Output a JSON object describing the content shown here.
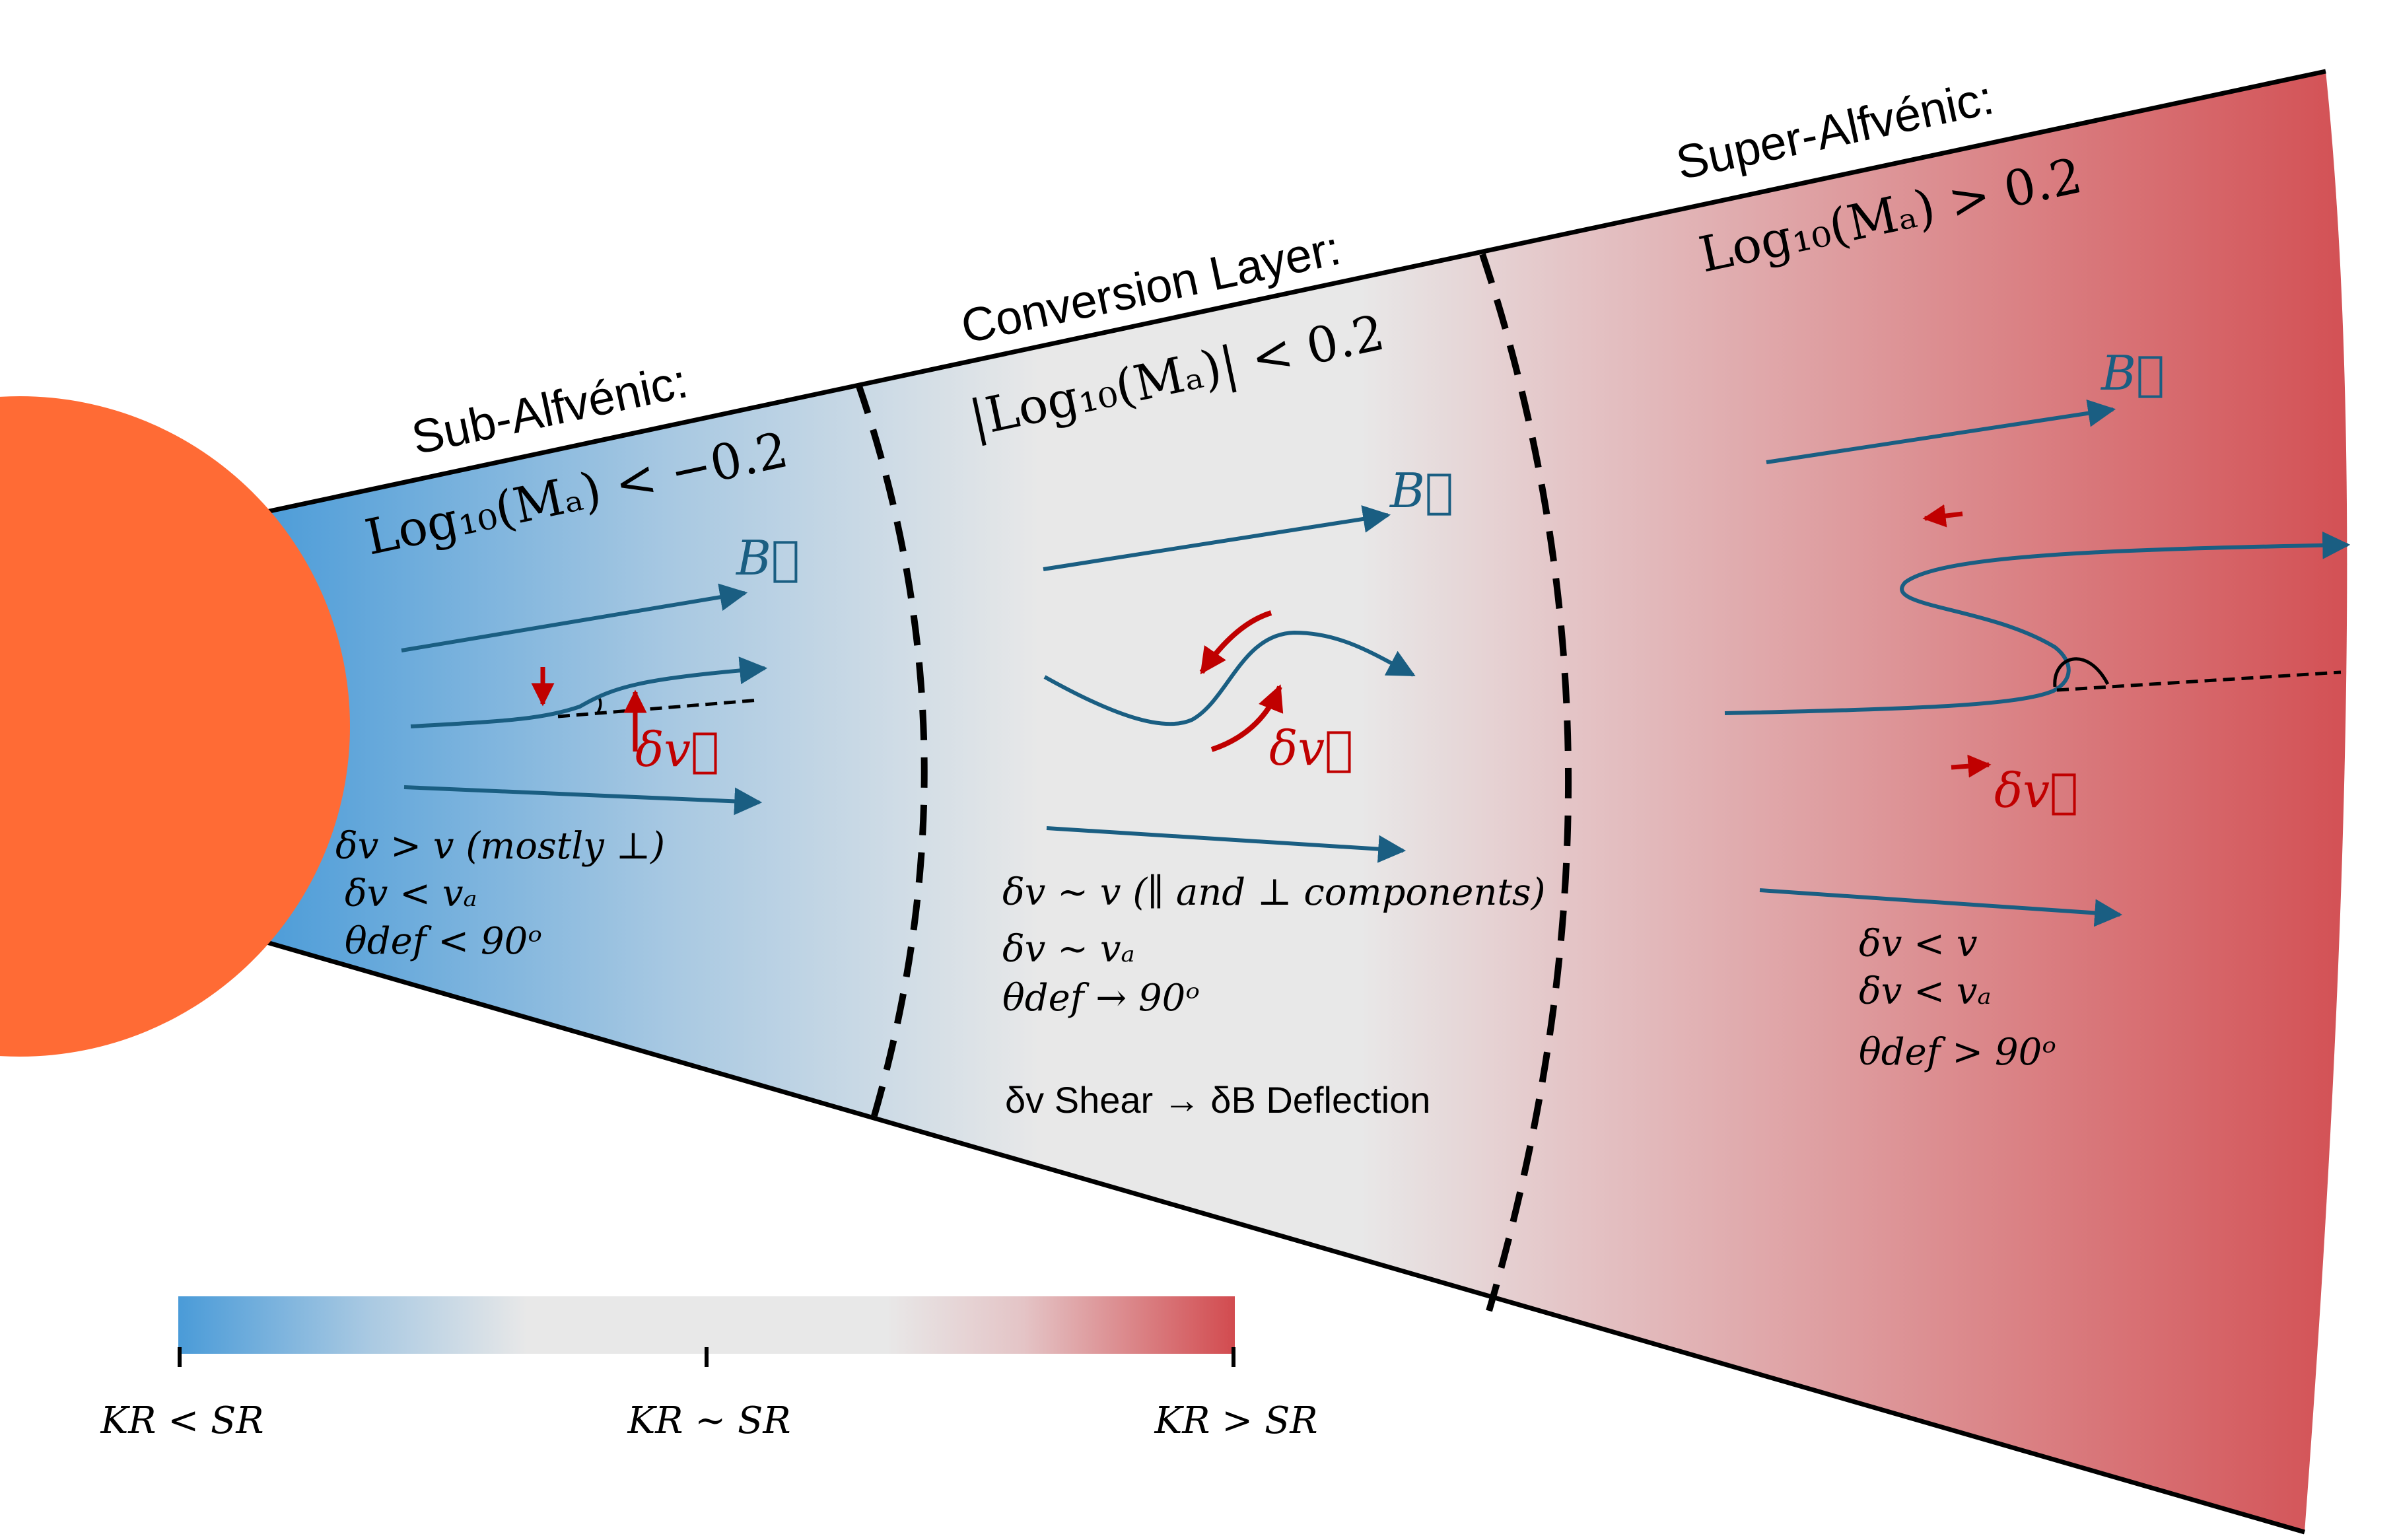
{
  "colors": {
    "sun": "#FF6B35",
    "sub": "#4A9BD8",
    "mid": "#E8E8E8",
    "super": "#D24B4F",
    "field": "#1A5E82",
    "perturb": "#C00000"
  },
  "regions": {
    "sub": {
      "title": "Sub-Alfvénic:",
      "condition": "Log₁₀(Mₐ) < −0.2",
      "b_label": "B⃗",
      "dv_label": "δv⃗",
      "notes": [
        "δv > v (mostly ⊥)",
        "δv < vₐ",
        "θdef < 90ᵒ"
      ]
    },
    "conversion": {
      "title": "Conversion Layer:",
      "condition": "|Log₁₀(Mₐ)| < 0.2",
      "b_label": "B⃗",
      "dv_label": "δv⃗",
      "notes": [
        "δv ~ v  (∥ and ⊥ components)",
        "δv ~ vₐ",
        "θdef → 90ᵒ",
        "δv Shear → δB Deflection"
      ]
    },
    "super": {
      "title": "Super-Alfvénic:",
      "condition": "Log₁₀(Mₐ) > 0.2",
      "b_label": "B⃗",
      "dv_label": "δv⃗",
      "notes": [
        "δv < v",
        "δv < vₐ",
        "θdef > 90ᵒ"
      ]
    }
  },
  "colorbar": {
    "labels": [
      "KR < SR",
      "KR ~ SR",
      "KR > SR"
    ]
  }
}
